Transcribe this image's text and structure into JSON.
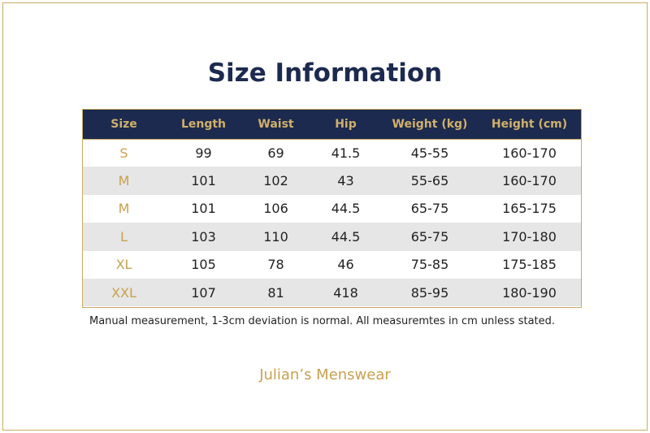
{
  "title": "Size Information",
  "table": {
    "headers": [
      "Size",
      "Length",
      "Waist",
      "Hip",
      "Weight (kg)",
      "Height (cm)"
    ],
    "rows": [
      [
        "S",
        "99",
        "69",
        "41.5",
        "45-55",
        "160-170"
      ],
      [
        "M",
        "101",
        "102",
        "43",
        "55-65",
        "160-170"
      ],
      [
        "M",
        "101",
        "106",
        "44.5",
        "65-75",
        "165-175"
      ],
      [
        "L",
        "103",
        "110",
        "44.5",
        "65-75",
        "170-180"
      ],
      [
        "XL",
        "105",
        "78",
        "46",
        "75-85",
        "175-185"
      ],
      [
        "XXL",
        "107",
        "81",
        "418",
        "85-95",
        "180-190"
      ]
    ]
  },
  "note": "Manual measurement, 1-3cm deviation is normal. All measuremtes in cm unless stated.",
  "brand": "Julian’s Menswear",
  "colors": {
    "navy": "#1c2a4f",
    "gold": "#c9a14f",
    "stripe": "#e6e6e6"
  }
}
